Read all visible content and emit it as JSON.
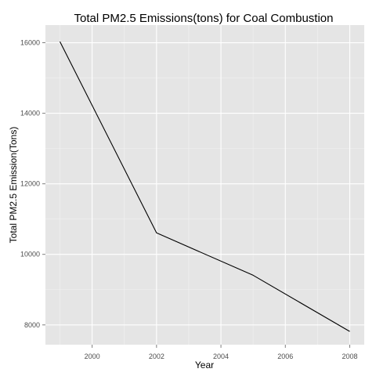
{
  "chart_data": {
    "type": "line",
    "title": "Total PM2.5 Emissions(tons) for Coal Combustion",
    "xlabel": "Year",
    "ylabel": "Total PM2.5 Emission(Tons)",
    "x_ticks": [
      2000,
      2002,
      2004,
      2006,
      2008
    ],
    "y_ticks": [
      8000,
      10000,
      12000,
      14000,
      16000
    ],
    "xlim": [
      1998.55,
      2008.45
    ],
    "ylim": [
      7440,
      16500
    ],
    "grid": true,
    "series": [
      {
        "x": [
          1999,
          2002,
          2005,
          2008
        ],
        "y": [
          16031,
          10610,
          9407,
          7814
        ]
      }
    ],
    "colors": {
      "panel_background": "#e5e5e5",
      "major_grid": "#ffffff",
      "minor_grid": "#f2f2f2",
      "line": "#000000",
      "tick_label": "#4d4d4d",
      "tick_mark": "#7f7f7f"
    }
  }
}
